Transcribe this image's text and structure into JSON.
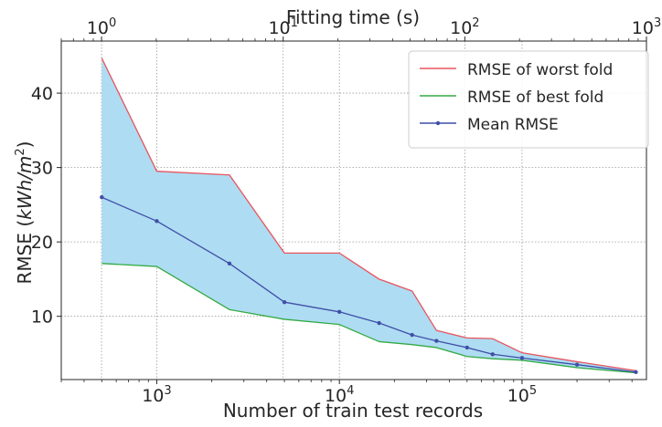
{
  "chart_data": {
    "type": "line",
    "xlabel": "Number of train test records",
    "ylabel_main": "RMSE ",
    "ylabel_unit_open": "(",
    "ylabel_unit_var": "kWh/m",
    "ylabel_unit_exp": "2",
    "ylabel_unit_close": ")",
    "x_scale": "log",
    "y_scale": "linear",
    "xlim": [
      300,
      480000
    ],
    "ylim": [
      1.5,
      47
    ],
    "x_ticks": [
      {
        "value": 1000,
        "base": "10",
        "exp": "3"
      },
      {
        "value": 10000,
        "base": "10",
        "exp": "4"
      },
      {
        "value": 100000,
        "base": "10",
        "exp": "5"
      }
    ],
    "y_ticks": [
      {
        "value": 10,
        "label": "10"
      },
      {
        "value": 20,
        "label": "20"
      },
      {
        "value": 30,
        "label": "30"
      },
      {
        "value": 40,
        "label": "40"
      }
    ],
    "top_axis": {
      "label": "Fitting time (s)",
      "scale": "log",
      "xlim": [
        0.6,
        1000
      ],
      "ticks": [
        {
          "value": 1,
          "base": "10",
          "exp": "0"
        },
        {
          "value": 10,
          "base": "10",
          "exp": "1"
        },
        {
          "value": 100,
          "base": "10",
          "exp": "2"
        },
        {
          "value": 1000,
          "base": "10",
          "exp": "3"
        }
      ]
    },
    "grid": true,
    "legend_position": "top-right",
    "series": [
      {
        "name": "RMSE of worst fold",
        "color": "#e8545e",
        "markers": false,
        "x": [
          500,
          1000,
          2500,
          5000,
          10000,
          16500,
          25000,
          34000,
          50000,
          69000,
          100000,
          200000,
          420000
        ],
        "y": [
          44.7,
          29.5,
          29.0,
          18.5,
          18.5,
          15.0,
          13.4,
          8.1,
          7.1,
          7.0,
          5.1,
          3.9,
          2.7
        ]
      },
      {
        "name": "RMSE of best fold",
        "color": "#33aa44",
        "markers": false,
        "x": [
          500,
          1000,
          2500,
          5000,
          10000,
          16500,
          25000,
          34000,
          50000,
          69000,
          100000,
          200000,
          420000
        ],
        "y": [
          17.1,
          16.7,
          10.9,
          9.6,
          8.9,
          6.6,
          6.2,
          5.8,
          4.6,
          4.3,
          4.1,
          3.1,
          2.4
        ]
      },
      {
        "name": "Mean RMSE",
        "color": "#3f4fa8",
        "markers": true,
        "x": [
          500,
          1000,
          2500,
          5000,
          10000,
          16500,
          25000,
          34000,
          50000,
          69000,
          100000,
          200000,
          420000
        ],
        "y": [
          26.0,
          22.8,
          17.1,
          11.9,
          10.6,
          9.1,
          7.5,
          6.7,
          5.8,
          4.9,
          4.4,
          3.5,
          2.5
        ]
      }
    ],
    "band": {
      "between": [
        "RMSE of best fold",
        "RMSE of worst fold"
      ],
      "color": "#aedcf2"
    }
  }
}
